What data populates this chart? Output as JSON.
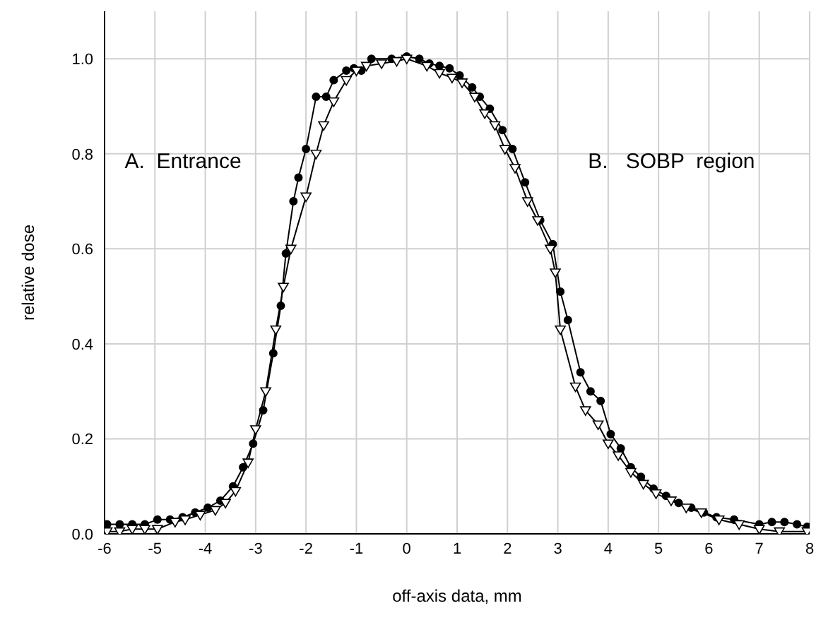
{
  "chart_data": {
    "type": "line",
    "xlabel": "off-axis data, mm",
    "ylabel": "relative dose",
    "annotations": [
      "A.  Entrance",
      "B.   SOBP  region"
    ],
    "xlim": [
      -6,
      8
    ],
    "xticks": [
      -6,
      -5,
      -4,
      -3,
      -2,
      -1,
      0,
      1,
      2,
      3,
      4,
      5,
      6,
      7,
      8
    ],
    "ylim": [
      0,
      1.1
    ],
    "yticks": [
      {
        "value": 0,
        "label": "0.0"
      },
      {
        "value": 0.2,
        "label": "0.2"
      },
      {
        "value": 0.4,
        "label": "0.4"
      },
      {
        "value": 0.6,
        "label": "0.6"
      },
      {
        "value": 0.8,
        "label": "0.8"
      },
      {
        "value": 1,
        "label": "1.0"
      }
    ],
    "grid": true,
    "line_style": "solid",
    "series": [
      {
        "color": "#000000",
        "marker": "circle",
        "x": [
          -5.95,
          -5.7,
          -5.45,
          -5.2,
          -4.95,
          -4.7,
          -4.45,
          -4.2,
          -3.95,
          -3.7,
          -3.45,
          -3.25,
          -3.05,
          -2.85,
          -2.65,
          -2.5,
          -2.4,
          -2.25,
          -2.15,
          -2,
          -1.8,
          -1.6,
          -1.45,
          -1.2,
          -1.05,
          -0.9,
          -0.7,
          -0.3,
          0,
          0.25,
          0.45,
          0.65,
          0.85,
          1.05,
          1.3,
          1.45,
          1.65,
          1.9,
          2.1,
          2.35,
          2.65,
          2.9,
          3.05,
          3.2,
          3.45,
          3.65,
          3.85,
          4.05,
          4.25,
          4.45,
          4.65,
          4.9,
          5.15,
          5.4,
          5.65,
          5.9,
          6.15,
          6.5,
          7,
          7.25,
          7.5,
          7.75,
          7.95
        ],
        "values": [
          0.02,
          0.02,
          0.02,
          0.02,
          0.03,
          0.03,
          0.035,
          0.045,
          0.055,
          0.07,
          0.1,
          0.14,
          0.19,
          0.26,
          0.38,
          0.48,
          0.59,
          0.7,
          0.75,
          0.81,
          0.92,
          0.92,
          0.955,
          0.975,
          0.98,
          0.975,
          1,
          1,
          1.005,
          1,
          0.99,
          0.985,
          0.98,
          0.965,
          0.94,
          0.92,
          0.895,
          0.85,
          0.81,
          0.74,
          0.66,
          0.61,
          0.51,
          0.45,
          0.34,
          0.3,
          0.28,
          0.21,
          0.18,
          0.14,
          0.12,
          0.095,
          0.08,
          0.065,
          0.055,
          0.045,
          0.035,
          0.03,
          0.02,
          0.025,
          0.025,
          0.02,
          0.015
        ]
      },
      {
        "color": "#000000",
        "marker": "triangle",
        "x": [
          -5.95,
          -5.7,
          -5.45,
          -5.2,
          -4.95,
          -4.6,
          -4.4,
          -4.1,
          -3.8,
          -3.6,
          -3.4,
          -3.15,
          -3,
          -2.8,
          -2.6,
          -2.45,
          -2.3,
          -2,
          -1.8,
          -1.65,
          -1.45,
          -1.2,
          -1,
          -0.8,
          -0.5,
          -0.2,
          0,
          0.4,
          0.65,
          0.9,
          1.1,
          1.35,
          1.55,
          1.75,
          1.95,
          2.15,
          2.4,
          2.6,
          2.85,
          2.95,
          3.05,
          3.35,
          3.55,
          3.8,
          4,
          4.2,
          4.45,
          4.7,
          4.95,
          5.25,
          5.55,
          5.85,
          6.2,
          6.6,
          7,
          7.4,
          7.95
        ],
        "values": [
          0.005,
          0.005,
          0.01,
          0.01,
          0.01,
          0.025,
          0.03,
          0.04,
          0.05,
          0.065,
          0.09,
          0.15,
          0.22,
          0.3,
          0.43,
          0.52,
          0.6,
          0.71,
          0.8,
          0.86,
          0.91,
          0.955,
          0.975,
          0.985,
          0.99,
          0.995,
          1,
          0.985,
          0.97,
          0.96,
          0.95,
          0.92,
          0.885,
          0.86,
          0.81,
          0.77,
          0.7,
          0.66,
          0.6,
          0.55,
          0.43,
          0.31,
          0.26,
          0.23,
          0.19,
          0.165,
          0.13,
          0.105,
          0.085,
          0.07,
          0.055,
          0.045,
          0.03,
          0.02,
          0.01,
          0.005,
          0.005
        ]
      }
    ]
  }
}
